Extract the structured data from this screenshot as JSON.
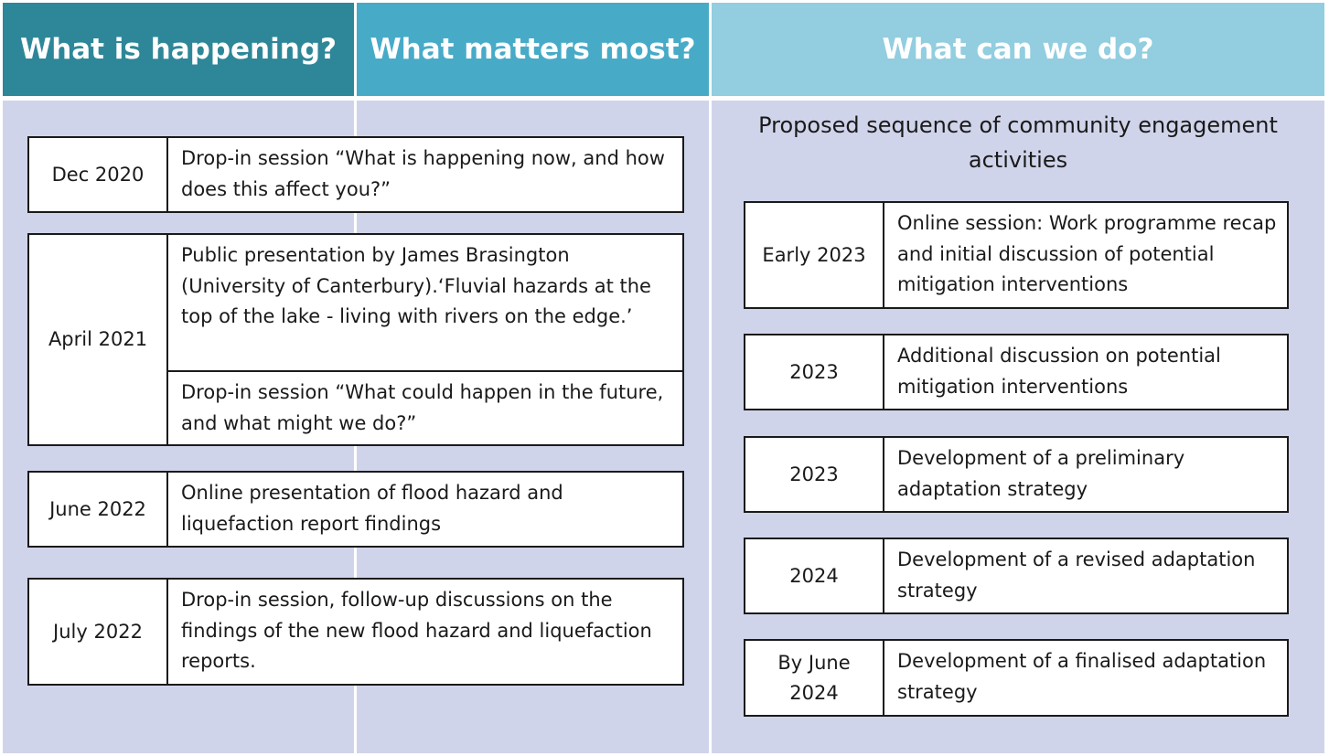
{
  "headers": {
    "happening": "What is happening?",
    "matters": "What matters most?",
    "can_do": "What can we do?"
  },
  "past_events": [
    {
      "date": "Dec 2020",
      "items": [
        "Drop-in session “What is happening now, and how does this affect you?”"
      ]
    },
    {
      "date": "April 2021",
      "items": [
        "Public presentation by James Brasington (University of Canterbury).‘Fluvial hazards at the top of the lake - living with rivers on the edge.’",
        "Drop-in session “What could happen in the future, and what might we do?”"
      ]
    },
    {
      "date": "June 2022",
      "items": [
        "Online presentation of flood hazard and liquefaction report findings"
      ]
    },
    {
      "date": "July 2022",
      "items": [
        "Drop-in session, follow-up discussions on the findings of the new flood hazard and liquefaction reports."
      ]
    }
  ],
  "proposed": {
    "title": "Proposed sequence of community engagement activities",
    "events": [
      {
        "date": "Early 2023",
        "item": "Online session:  Work programme recap and initial discussion of potential mitigation interventions"
      },
      {
        "date": "2023",
        "item": "Additional discussion on potential mitigation interventions"
      },
      {
        "date": "2023",
        "item": "Development of a preliminary adaptation strategy"
      },
      {
        "date": "2024",
        "item": "Development of a revised adaptation strategy"
      },
      {
        "date": "By June 2024",
        "item": "Development of a finalised adaptation strategy"
      }
    ]
  },
  "colors": {
    "header_1": "#2e8799",
    "header_2": "#47abc8",
    "header_3": "#92cde0",
    "panel": "#d0d4ea"
  }
}
